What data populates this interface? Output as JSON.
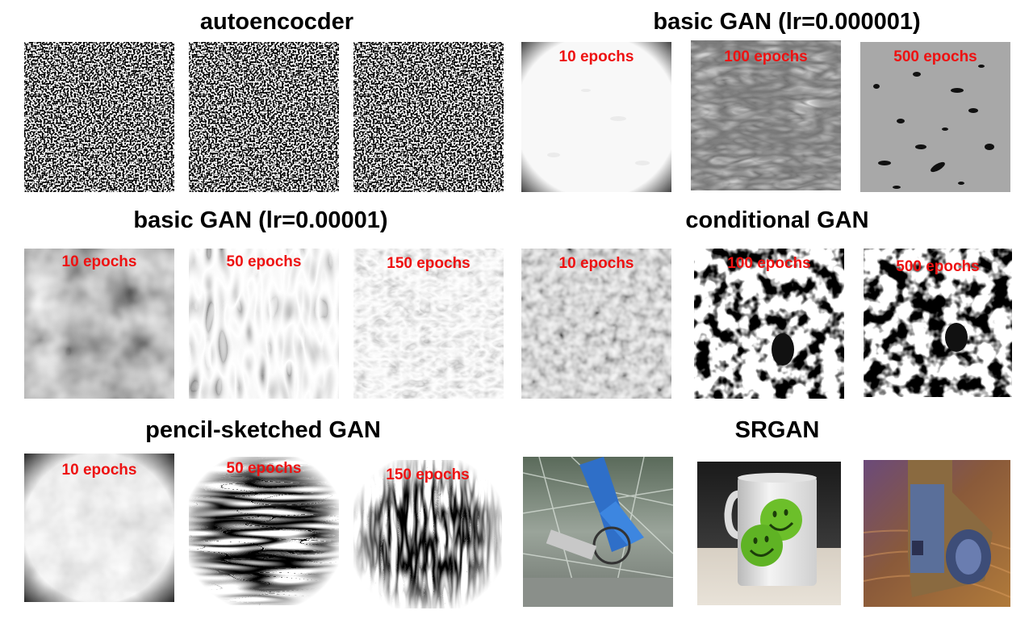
{
  "panels": {
    "autoencoder": {
      "title": "autoencocder",
      "labels": [
        "",
        "",
        ""
      ]
    },
    "basic_gan_lr_000001": {
      "title": "basic GAN (lr=0.000001)",
      "labels": [
        "10 epochs",
        "100 epochs",
        "500 epochs"
      ]
    },
    "basic_gan_lr_00001": {
      "title": "basic GAN (lr=0.00001)",
      "labels": [
        "10 epochs",
        "50 epochs",
        "150 epochs"
      ]
    },
    "conditional_gan": {
      "title": "conditional GAN",
      "labels": [
        "10 epochs",
        "100 epochs",
        "500 epochs"
      ]
    },
    "pencil_sketched_gan": {
      "title": "pencil-sketched GAN",
      "labels": [
        "10 epochs",
        "50 epochs",
        "150 epochs"
      ]
    },
    "srgan": {
      "title": "SRGAN",
      "labels": [
        "",
        "",
        ""
      ]
    }
  },
  "colors": {
    "label": "#ee1111",
    "title": "#000000"
  }
}
